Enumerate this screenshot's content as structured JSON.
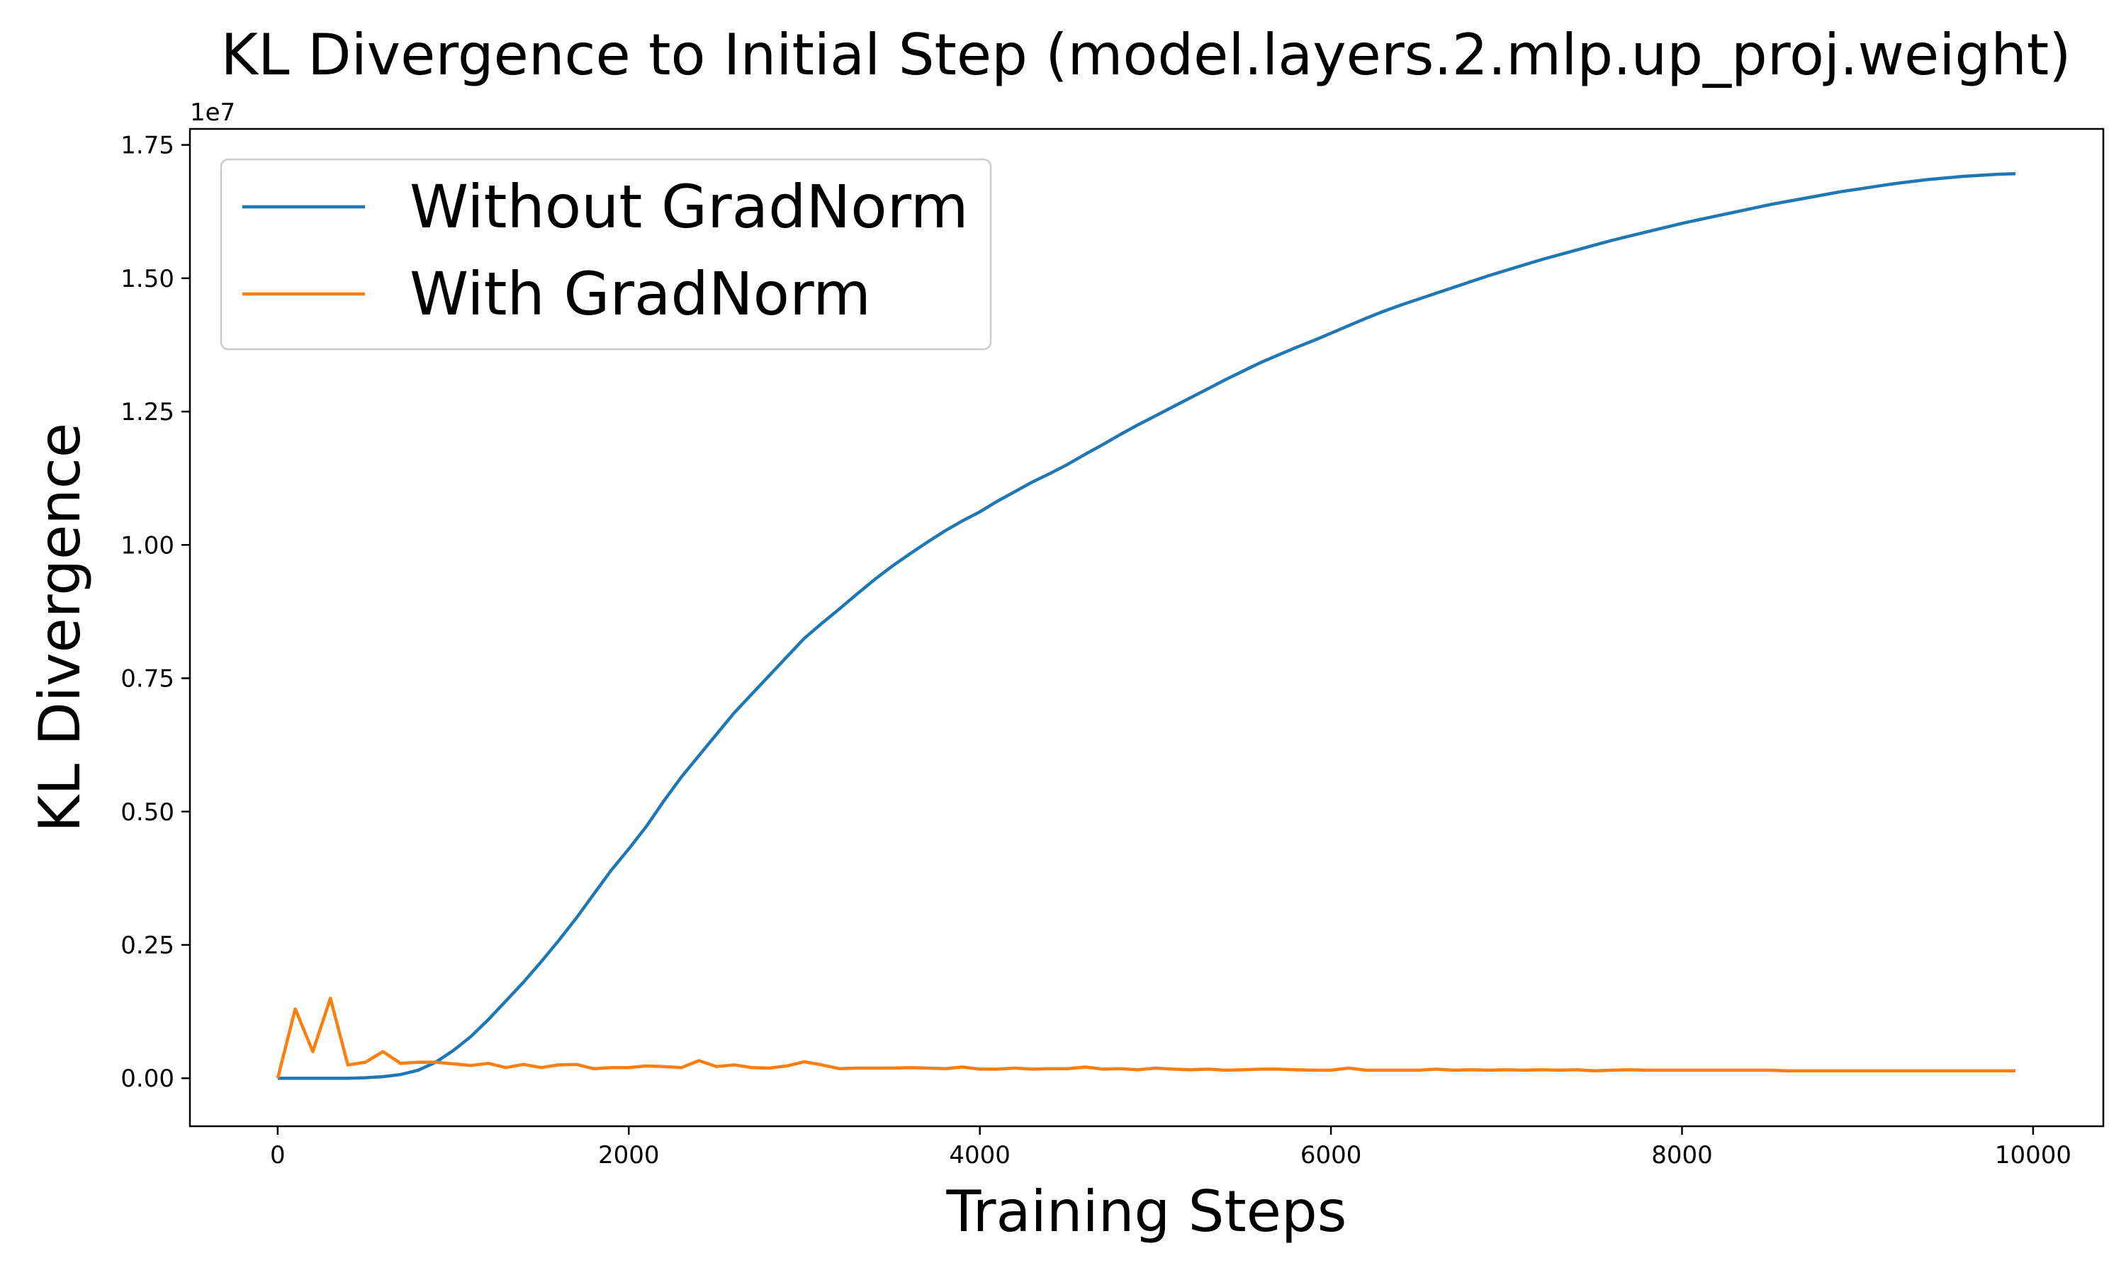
{
  "chart_data": {
    "type": "line",
    "title": "KL Divergence to Initial Step (model.layers.2.mlp.up_proj.weight)",
    "xlabel": "Training Steps",
    "ylabel": "KL Divergence",
    "y_offset_label": "1e7",
    "xlim": [
      -500,
      10400
    ],
    "ylim": [
      -0.09,
      1.78
    ],
    "y_scale_factor": 10000000,
    "x_ticks": [
      0,
      2000,
      4000,
      6000,
      8000,
      10000
    ],
    "x_tick_labels": [
      "0",
      "2000",
      "4000",
      "6000",
      "8000",
      "10000"
    ],
    "y_ticks": [
      0,
      0.25,
      0.5,
      0.75,
      1.0,
      1.25,
      1.5,
      1.75
    ],
    "y_tick_labels": [
      "0.00",
      "0.25",
      "0.50",
      "0.75",
      "1.00",
      "1.25",
      "1.50",
      "1.75"
    ],
    "grid": false,
    "legend_position": "top-left",
    "series": [
      {
        "name": "Without GradNorm",
        "color": "#1f77b4",
        "x": [
          0,
          100,
          200,
          300,
          400,
          500,
          600,
          700,
          800,
          900,
          1000,
          1100,
          1200,
          1300,
          1400,
          1500,
          1600,
          1700,
          1800,
          1900,
          2000,
          2100,
          2200,
          2300,
          2400,
          2500,
          2600,
          2700,
          2800,
          2900,
          3000,
          3100,
          3200,
          3300,
          3400,
          3500,
          3600,
          3700,
          3800,
          3900,
          4000,
          4100,
          4200,
          4300,
          4400,
          4500,
          4600,
          4700,
          4800,
          4900,
          5000,
          5100,
          5200,
          5300,
          5400,
          5500,
          5600,
          5700,
          5800,
          5900,
          6000,
          6100,
          6200,
          6300,
          6400,
          6500,
          6600,
          6700,
          6800,
          6900,
          7000,
          7100,
          7200,
          7300,
          7400,
          7500,
          7600,
          7700,
          7800,
          7900,
          8000,
          8100,
          8200,
          8300,
          8400,
          8500,
          8600,
          8700,
          8800,
          8900,
          9000,
          9100,
          9200,
          9300,
          9400,
          9500,
          9600,
          9700,
          9800,
          9900
        ],
        "y": [
          0.0,
          0.0,
          0.0,
          0.0,
          0.0,
          0.001,
          0.003,
          0.007,
          0.015,
          0.03,
          0.052,
          0.078,
          0.11,
          0.145,
          0.18,
          0.218,
          0.258,
          0.3,
          0.345,
          0.39,
          0.43,
          0.472,
          0.52,
          0.565,
          0.605,
          0.645,
          0.685,
          0.72,
          0.755,
          0.79,
          0.825,
          0.853,
          0.88,
          0.908,
          0.935,
          0.96,
          0.983,
          1.005,
          1.026,
          1.045,
          1.062,
          1.082,
          1.1,
          1.118,
          1.134,
          1.151,
          1.17,
          1.188,
          1.207,
          1.225,
          1.242,
          1.259,
          1.276,
          1.293,
          1.31,
          1.326,
          1.342,
          1.356,
          1.37,
          1.383,
          1.397,
          1.411,
          1.425,
          1.438,
          1.45,
          1.461,
          1.472,
          1.483,
          1.494,
          1.505,
          1.515,
          1.525,
          1.535,
          1.544,
          1.553,
          1.562,
          1.571,
          1.579,
          1.587,
          1.595,
          1.603,
          1.61,
          1.617,
          1.624,
          1.631,
          1.638,
          1.644,
          1.65,
          1.656,
          1.662,
          1.667,
          1.672,
          1.677,
          1.681,
          1.685,
          1.688,
          1.691,
          1.693,
          1.695,
          1.696
        ]
      },
      {
        "name": "With GradNorm",
        "color": "#ff7f0e",
        "x": [
          0,
          100,
          200,
          300,
          400,
          500,
          600,
          700,
          800,
          900,
          1000,
          1100,
          1200,
          1300,
          1400,
          1500,
          1600,
          1700,
          1800,
          1900,
          2000,
          2100,
          2200,
          2300,
          2400,
          2500,
          2600,
          2700,
          2800,
          2900,
          3000,
          3100,
          3200,
          3300,
          3400,
          3500,
          3600,
          3700,
          3800,
          3900,
          4000,
          4100,
          4200,
          4300,
          4400,
          4500,
          4600,
          4700,
          4800,
          4900,
          5000,
          5100,
          5200,
          5300,
          5400,
          5500,
          5600,
          5700,
          5800,
          5900,
          6000,
          6100,
          6200,
          6300,
          6400,
          6500,
          6600,
          6700,
          6800,
          6900,
          7000,
          7100,
          7200,
          7300,
          7400,
          7500,
          7600,
          7700,
          7800,
          7900,
          8000,
          8100,
          8200,
          8300,
          8400,
          8500,
          8600,
          8700,
          8800,
          8900,
          9000,
          9100,
          9200,
          9300,
          9400,
          9500,
          9600,
          9700,
          9800,
          9900
        ],
        "y": [
          0.0,
          0.13,
          0.05,
          0.15,
          0.025,
          0.03,
          0.05,
          0.028,
          0.03,
          0.03,
          0.027,
          0.024,
          0.028,
          0.02,
          0.026,
          0.02,
          0.025,
          0.026,
          0.018,
          0.02,
          0.02,
          0.023,
          0.022,
          0.02,
          0.033,
          0.022,
          0.025,
          0.02,
          0.019,
          0.023,
          0.031,
          0.025,
          0.018,
          0.019,
          0.019,
          0.019,
          0.02,
          0.019,
          0.018,
          0.021,
          0.017,
          0.017,
          0.019,
          0.017,
          0.018,
          0.018,
          0.021,
          0.017,
          0.018,
          0.016,
          0.019,
          0.017,
          0.016,
          0.017,
          0.015,
          0.016,
          0.017,
          0.017,
          0.016,
          0.015,
          0.015,
          0.019,
          0.015,
          0.015,
          0.015,
          0.015,
          0.017,
          0.015,
          0.016,
          0.015,
          0.016,
          0.015,
          0.016,
          0.015,
          0.016,
          0.014,
          0.015,
          0.016,
          0.015,
          0.015,
          0.015,
          0.015,
          0.015,
          0.015,
          0.015,
          0.015,
          0.014,
          0.014,
          0.014,
          0.014,
          0.014,
          0.014,
          0.014,
          0.014,
          0.014,
          0.014,
          0.014,
          0.014,
          0.014,
          0.014
        ]
      }
    ]
  }
}
